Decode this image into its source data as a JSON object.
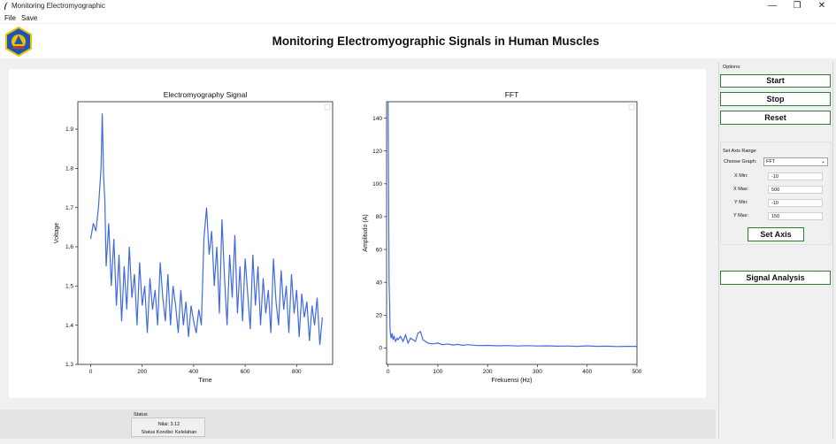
{
  "window": {
    "title": "Monitoring Electromyographic",
    "minimize": "—",
    "maximize": "❐",
    "close": "✕"
  },
  "menu": {
    "file": "File",
    "save": "Save"
  },
  "header": {
    "title": "Monitoring Electromyographic Signals in Human Muscles"
  },
  "options": {
    "label": "Options:",
    "start": "Start",
    "stop": "Stop",
    "reset": "Reset",
    "axis_range_label": "Set Axis Range",
    "choose_graph_label": "Choose Graph:",
    "choose_graph_value": "FFT",
    "xmin_label": "X Min:",
    "xmin_value": "-10",
    "xmax_label": "X Max:",
    "xmax_value": "500",
    "ymin_label": "Y Min:",
    "ymin_value": "-10",
    "ymax_label": "Y Max:",
    "ymax_value": "150",
    "set_axis": "Set Axis",
    "signal_analysis": "Signal Analysis"
  },
  "status": {
    "title": "Status",
    "nilai": "Nilai: 3.12",
    "kondisi": "Status Kondisi: Kelelahan"
  },
  "chart_data": [
    {
      "type": "line",
      "title": "Electromyography Signal",
      "xlabel": "Time",
      "ylabel": "Voltage",
      "xlim": [
        -50,
        940
      ],
      "ylim": [
        1.3,
        1.97
      ],
      "xticks": [
        0,
        200,
        400,
        600,
        800
      ],
      "yticks": [
        1.3,
        1.4,
        1.5,
        1.6,
        1.7,
        1.8,
        1.9
      ],
      "color": "#4169e1",
      "series": [
        {
          "x": [
            0,
            10,
            20,
            30,
            40,
            45,
            50,
            55,
            60,
            70,
            80,
            90,
            100,
            110,
            120,
            130,
            140,
            150,
            160,
            170,
            180,
            190,
            200,
            210,
            220,
            230,
            240,
            250,
            260,
            270,
            280,
            290,
            300,
            310,
            320,
            330,
            340,
            350,
            360,
            370,
            380,
            390,
            400,
            410,
            420,
            430,
            440,
            450,
            460,
            470,
            480,
            490,
            500,
            510,
            520,
            530,
            540,
            550,
            560,
            570,
            580,
            590,
            600,
            610,
            620,
            630,
            640,
            650,
            660,
            670,
            680,
            690,
            700,
            710,
            720,
            730,
            740,
            750,
            760,
            770,
            780,
            790,
            800,
            810,
            820,
            830,
            840,
            850,
            860,
            870,
            880,
            890,
            900
          ],
          "values": [
            1.62,
            1.66,
            1.64,
            1.7,
            1.8,
            1.94,
            1.78,
            1.72,
            1.55,
            1.66,
            1.5,
            1.62,
            1.45,
            1.58,
            1.41,
            1.55,
            1.44,
            1.6,
            1.47,
            1.53,
            1.4,
            1.56,
            1.45,
            1.5,
            1.38,
            1.52,
            1.44,
            1.49,
            1.4,
            1.56,
            1.47,
            1.41,
            1.53,
            1.4,
            1.5,
            1.45,
            1.38,
            1.49,
            1.4,
            1.46,
            1.37,
            1.45,
            1.41,
            1.38,
            1.44,
            1.4,
            1.62,
            1.7,
            1.58,
            1.64,
            1.5,
            1.6,
            1.43,
            1.67,
            1.52,
            1.4,
            1.58,
            1.47,
            1.63,
            1.43,
            1.55,
            1.41,
            1.57,
            1.48,
            1.39,
            1.58,
            1.45,
            1.55,
            1.4,
            1.52,
            1.43,
            1.49,
            1.38,
            1.57,
            1.46,
            1.4,
            1.54,
            1.44,
            1.5,
            1.38,
            1.53,
            1.43,
            1.49,
            1.37,
            1.48,
            1.42,
            1.46,
            1.36,
            1.45,
            1.4,
            1.47,
            1.35,
            1.42
          ]
        }
      ]
    },
    {
      "type": "line",
      "title": "FFT",
      "xlabel": "Frekuensi (Hz)",
      "ylabel": "Amplitudo (A)",
      "xlim": [
        -3,
        500
      ],
      "ylim": [
        -10,
        150
      ],
      "xticks": [
        0,
        100,
        200,
        300,
        400,
        500
      ],
      "yticks": [
        0,
        20,
        40,
        60,
        80,
        100,
        120,
        140
      ],
      "color": "#4169e1",
      "series": [
        {
          "x": [
            0,
            1,
            2,
            3,
            4,
            5,
            6,
            8,
            10,
            12,
            15,
            18,
            20,
            25,
            30,
            35,
            40,
            45,
            50,
            55,
            60,
            65,
            70,
            75,
            80,
            90,
            100,
            110,
            120,
            130,
            140,
            150,
            160,
            180,
            200,
            220,
            240,
            260,
            280,
            300,
            320,
            340,
            360,
            380,
            400,
            420,
            440,
            460,
            480,
            500
          ],
          "values": [
            150,
            90,
            40,
            28,
            12,
            8,
            6,
            9,
            5,
            7,
            4,
            6,
            5,
            7,
            4,
            8,
            3,
            6,
            5,
            4,
            9,
            10,
            5,
            4,
            3,
            2.5,
            3,
            2,
            2.5,
            1.8,
            2.2,
            1.6,
            2,
            1.5,
            1.6,
            1.3,
            1.5,
            1.2,
            1.4,
            1.2,
            1.3,
            1.1,
            1.2,
            1.0,
            1.3,
            1.0,
            1.1,
            0.9,
            1.0,
            1.0
          ]
        }
      ]
    }
  ]
}
